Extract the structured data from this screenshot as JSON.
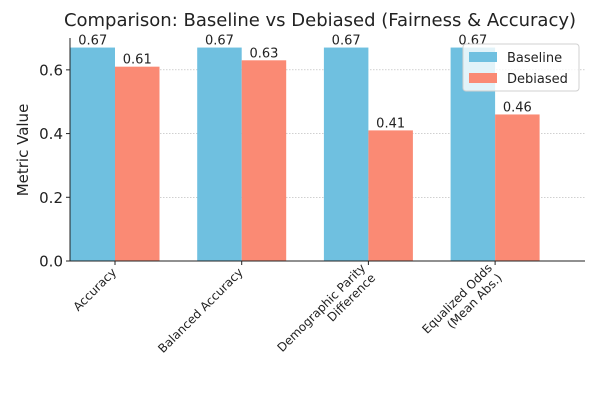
{
  "chart_data": {
    "type": "bar",
    "title": "Comparison: Baseline vs Debiased (Fairness & Accuracy)",
    "xlabel": "",
    "ylabel": "Metric Value",
    "categories": [
      [
        "Accuracy"
      ],
      [
        "Balanced Accuracy"
      ],
      [
        "Demographic Parity",
        "Difference"
      ],
      [
        "Equalized Odds",
        "(Mean Abs.)"
      ]
    ],
    "series": [
      {
        "name": "Baseline",
        "color": "#6fc0e0",
        "values": [
          0.67,
          0.67,
          0.67,
          0.67
        ],
        "labels": [
          "0.67",
          "0.67",
          "0.67",
          "0.67"
        ]
      },
      {
        "name": "Debiased",
        "color": "#fa8a74",
        "values": [
          0.61,
          0.63,
          0.41,
          0.46
        ],
        "labels": [
          "0.61",
          "0.63",
          "0.41",
          "0.46"
        ]
      }
    ],
    "ylim": [
      0,
      0.7
    ],
    "yticks": [
      0.0,
      0.2,
      0.4,
      0.6
    ],
    "ytick_labels": [
      "0.0",
      "0.2",
      "0.4",
      "0.6"
    ],
    "grid": "y-dotted",
    "legend_position": "top-right"
  }
}
